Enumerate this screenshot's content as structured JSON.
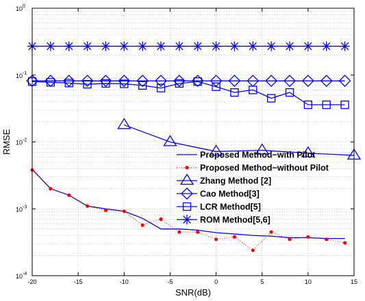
{
  "chart_data": {
    "type": "line",
    "xlabel": "SNR(dB)",
    "ylabel": "RMSE",
    "xscale": "linear",
    "yscale": "log",
    "xlim": [
      -20,
      15
    ],
    "ylim": [
      0.0001,
      1
    ],
    "xticks": [
      "-20",
      "-15",
      "-10",
      "-5",
      "0",
      "5",
      "10",
      "15"
    ],
    "yticks": [
      {
        "base": "10",
        "exp": "-4"
      },
      {
        "base": "10",
        "exp": "-3"
      },
      {
        "base": "10",
        "exp": "-2"
      },
      {
        "base": "10",
        "exp": "-1"
      },
      {
        "base": "10",
        "exp": "0"
      }
    ],
    "grid": true,
    "legend_position": "lower-right",
    "colors": {
      "blue": "#0000ff",
      "red": "#ff0000",
      "grid": "#c8c8c8",
      "axis": "#000000"
    },
    "series": [
      {
        "name": "Proposed Method−with Pilot",
        "style": "solid-line",
        "color": "#0000ff",
        "marker": "none",
        "x": [
          -20,
          -18,
          -16,
          -14,
          -12,
          -10,
          -8,
          -6,
          -4,
          -2,
          0,
          2,
          4,
          6,
          8,
          10,
          12,
          14
        ],
        "y": [
          0.0039,
          0.002,
          0.0016,
          0.0011,
          0.001,
          0.00092,
          0.00072,
          0.0005,
          0.0005,
          0.00048,
          0.00044,
          0.00042,
          0.0004,
          0.00039,
          0.00037,
          0.00037,
          0.00036,
          0.00036
        ]
      },
      {
        "name": "Proposed Method−without Pilot",
        "style": "dotted-line",
        "color": "#ff0000",
        "marker": "dot",
        "x": [
          -20,
          -18,
          -16,
          -14,
          -12,
          -10,
          -8,
          -6,
          -4,
          -2,
          0,
          2,
          4,
          6,
          8,
          10,
          12,
          14
        ],
        "y": [
          0.0038,
          0.002,
          0.0016,
          0.0011,
          0.00095,
          0.00092,
          0.00057,
          0.0007,
          0.00045,
          0.00045,
          0.00035,
          0.00038,
          0.00024,
          0.00045,
          0.00035,
          0.00038,
          0.00035,
          0.00031
        ]
      },
      {
        "name": "Zhang Method [2]",
        "style": "solid-line",
        "color": "#0000ff",
        "marker": "triangle",
        "x": [
          -10,
          -5,
          0,
          5,
          10,
          15
        ],
        "y": [
          0.018,
          0.01,
          0.0072,
          0.0075,
          0.0068,
          0.0063
        ]
      },
      {
        "name": "Cao Method[3]",
        "style": "solid-line",
        "color": "#0000ff",
        "marker": "diamond",
        "x": [
          -20,
          -18,
          -16,
          -14,
          -12,
          -10,
          -8,
          -6,
          -4,
          -2,
          0,
          2,
          4,
          6,
          8,
          10,
          12,
          14
        ],
        "y": [
          0.082,
          0.082,
          0.082,
          0.082,
          0.082,
          0.082,
          0.082,
          0.082,
          0.082,
          0.082,
          0.082,
          0.082,
          0.082,
          0.082,
          0.082,
          0.082,
          0.082,
          0.082
        ]
      },
      {
        "name": "LCR Method[5]",
        "style": "solid-line",
        "color": "#0000ff",
        "marker": "square",
        "x": [
          -20,
          -18,
          -16,
          -14,
          -12,
          -10,
          -8,
          -6,
          -4,
          -2,
          0,
          2,
          4,
          6,
          8,
          10,
          12,
          14
        ],
        "y": [
          0.08,
          0.078,
          0.076,
          0.073,
          0.075,
          0.074,
          0.07,
          0.064,
          0.075,
          0.08,
          0.067,
          0.055,
          0.06,
          0.045,
          0.055,
          0.036,
          0.036,
          0.036
        ]
      },
      {
        "name": "ROM Method[5,6]",
        "style": "solid-line",
        "color": "#0000ff",
        "marker": "asterisk",
        "x": [
          -20,
          -18,
          -16,
          -14,
          -12,
          -10,
          -8,
          -6,
          -4,
          -2,
          0,
          2,
          4,
          6,
          8,
          10,
          12,
          14
        ],
        "y": [
          0.27,
          0.27,
          0.27,
          0.27,
          0.27,
          0.27,
          0.27,
          0.27,
          0.27,
          0.27,
          0.27,
          0.27,
          0.27,
          0.27,
          0.27,
          0.27,
          0.27,
          0.27
        ]
      }
    ]
  }
}
